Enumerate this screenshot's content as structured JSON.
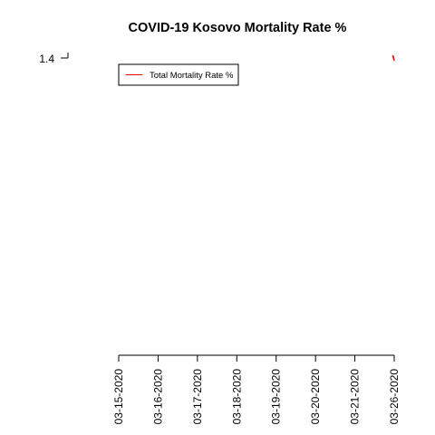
{
  "chart_data": {
    "type": "line",
    "title": "COVID-19 Kosovo Mortality Rate %",
    "xlabel": "",
    "ylabel": "",
    "x_ticks": [
      "03-15-2020",
      "03-16-2020",
      "03-17-2020",
      "03-18-2020",
      "03-19-2020",
      "03-20-2020",
      "03-21-2020",
      "03-26-2020"
    ],
    "y_ticks": [
      1.4
    ],
    "series": [
      {
        "name": "Total Mortality Rate %",
        "color": "#ff0000",
        "x": [
          "03-21-2020",
          "03-26-2020"
        ],
        "y": [
          1.43,
          1.37
        ]
      }
    ],
    "legend_position": "top-left",
    "grid": false
  }
}
